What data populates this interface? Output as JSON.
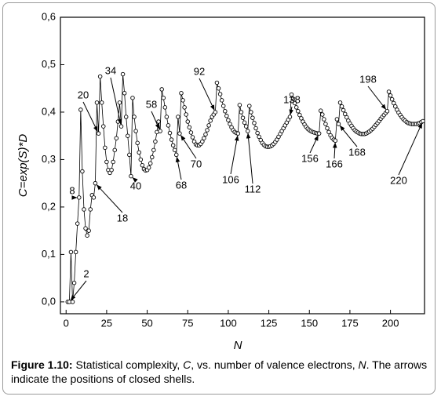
{
  "chart_data": {
    "type": "line",
    "xlabel": "N",
    "ylabel": "C=exp(S)*D",
    "xlim": [
      -3.5,
      221
    ],
    "ylim": [
      -0.025,
      0.6
    ],
    "xticks": [
      0,
      25,
      50,
      75,
      100,
      125,
      150,
      175,
      200
    ],
    "yticks": [
      {
        "value": 0,
        "label": "0,0"
      },
      {
        "value": 0.1,
        "label": "0,1"
      },
      {
        "value": 0.2,
        "label": "0,2"
      },
      {
        "value": 0.3,
        "label": "0,3"
      },
      {
        "value": 0.4,
        "label": "0,4"
      },
      {
        "value": 0.5,
        "label": "0,5"
      },
      {
        "value": 0.6,
        "label": "0,6"
      }
    ],
    "series": [
      {
        "color": "#000000",
        "x": [
          1,
          2,
          3,
          4,
          5,
          6,
          7,
          8,
          9,
          10,
          11,
          12,
          13,
          14,
          15,
          16,
          17,
          18,
          19,
          20,
          21,
          22,
          23,
          24,
          25,
          26,
          27,
          28,
          29,
          30,
          31,
          32,
          33,
          34,
          35,
          36,
          37,
          38,
          39,
          40,
          41,
          42,
          43,
          44,
          45,
          46,
          47,
          48,
          49,
          50,
          51,
          52,
          53,
          54,
          55,
          56,
          57,
          58,
          59,
          60,
          61,
          62,
          63,
          64,
          65,
          66,
          67,
          68,
          69,
          70,
          71,
          72,
          73,
          74,
          75,
          76,
          77,
          78,
          79,
          80,
          81,
          82,
          83,
          84,
          85,
          86,
          87,
          88,
          89,
          90,
          91,
          92,
          93,
          94,
          95,
          96,
          97,
          98,
          99,
          100,
          101,
          102,
          103,
          104,
          105,
          106,
          107,
          108,
          109,
          110,
          111,
          112,
          113,
          114,
          115,
          116,
          117,
          118,
          119,
          120,
          121,
          122,
          123,
          124,
          125,
          126,
          127,
          128,
          129,
          130,
          131,
          132,
          133,
          134,
          135,
          136,
          137,
          138,
          139,
          140,
          141,
          142,
          143,
          144,
          145,
          146,
          147,
          148,
          149,
          150,
          151,
          152,
          153,
          154,
          155,
          156,
          157,
          158,
          159,
          160,
          161,
          162,
          163,
          164,
          165,
          166,
          167,
          168,
          169,
          170,
          171,
          172,
          173,
          174,
          175,
          176,
          177,
          178,
          179,
          180,
          181,
          182,
          183,
          184,
          185,
          186,
          187,
          188,
          189,
          190,
          191,
          192,
          193,
          194,
          195,
          196,
          197,
          198,
          199,
          200,
          201,
          202,
          203,
          204,
          205,
          206,
          207,
          208,
          209,
          210,
          211,
          212,
          213,
          214,
          215,
          216,
          217,
          218,
          219,
          220
        ],
        "values": [
          0,
          0,
          0.105,
          0,
          0.04,
          0.105,
          0.165,
          0.22,
          0.405,
          0.275,
          0.195,
          0.155,
          0.14,
          0.15,
          0.195,
          0.225,
          0.22,
          0.25,
          0.42,
          0.355,
          0.475,
          0.42,
          0.37,
          0.325,
          0.295,
          0.278,
          0.272,
          0.278,
          0.295,
          0.32,
          0.345,
          0.38,
          0.42,
          0.37,
          0.48,
          0.44,
          0.39,
          0.35,
          0.31,
          0.265,
          0.43,
          0.39,
          0.36,
          0.335,
          0.315,
          0.3,
          0.288,
          0.28,
          0.277,
          0.278,
          0.283,
          0.292,
          0.305,
          0.32,
          0.338,
          0.358,
          0.38,
          0.36,
          0.448,
          0.43,
          0.41,
          0.39,
          0.372,
          0.356,
          0.342,
          0.33,
          0.32,
          0.31,
          0.39,
          0.355,
          0.44,
          0.425,
          0.41,
          0.395,
          0.38,
          0.368,
          0.357,
          0.347,
          0.338,
          0.332,
          0.33,
          0.33,
          0.333,
          0.338,
          0.345,
          0.353,
          0.362,
          0.372,
          0.382,
          0.39,
          0.395,
          0.4,
          0.462,
          0.45,
          0.438,
          0.425,
          0.413,
          0.402,
          0.392,
          0.383,
          0.375,
          0.368,
          0.362,
          0.358,
          0.356,
          0.355,
          0.415,
          0.4,
          0.388,
          0.378,
          0.37,
          0.36,
          0.413,
          0.4,
          0.388,
          0.377,
          0.366,
          0.356,
          0.348,
          0.341,
          0.335,
          0.331,
          0.328,
          0.327,
          0.327,
          0.328,
          0.33,
          0.333,
          0.337,
          0.342,
          0.348,
          0.354,
          0.36,
          0.366,
          0.372,
          0.378,
          0.384,
          0.39,
          0.437,
          0.428,
          0.419,
          0.41,
          0.402,
          0.394,
          0.387,
          0.38,
          0.374,
          0.369,
          0.365,
          0.362,
          0.36,
          0.358,
          0.357,
          0.356,
          0.355,
          0.355,
          0.403,
          0.395,
          0.385,
          0.375,
          0.366,
          0.358,
          0.351,
          0.346,
          0.342,
          0.34,
          0.385,
          0.375,
          0.42,
          0.412,
          0.404,
          0.396,
          0.389,
          0.382,
          0.376,
          0.371,
          0.366,
          0.362,
          0.359,
          0.357,
          0.355,
          0.354,
          0.354,
          0.354,
          0.355,
          0.357,
          0.359,
          0.362,
          0.365,
          0.369,
          0.373,
          0.377,
          0.381,
          0.386,
          0.39,
          0.394,
          0.398,
          0.402,
          0.443,
          0.435,
          0.427,
          0.419,
          0.412,
          0.405,
          0.399,
          0.394,
          0.389,
          0.385,
          0.382,
          0.379,
          0.377,
          0.376,
          0.375,
          0.375,
          0.375,
          0.375,
          0.376,
          0.377,
          0.379,
          0.381
        ]
      }
    ],
    "annotations": [
      "2",
      "8",
      "18",
      "20",
      "34",
      "40",
      "58",
      "68",
      "70",
      "92",
      "106",
      "112",
      "138",
      "156",
      "166",
      "168",
      "198",
      "220"
    ]
  },
  "caption": {
    "label": "Figure 1.10:",
    "parts": [
      "Statistical complexity,",
      "C",
      ", vs. number of valence electrons,",
      "N",
      ". The arrows indicate the positions of closed shells."
    ]
  }
}
